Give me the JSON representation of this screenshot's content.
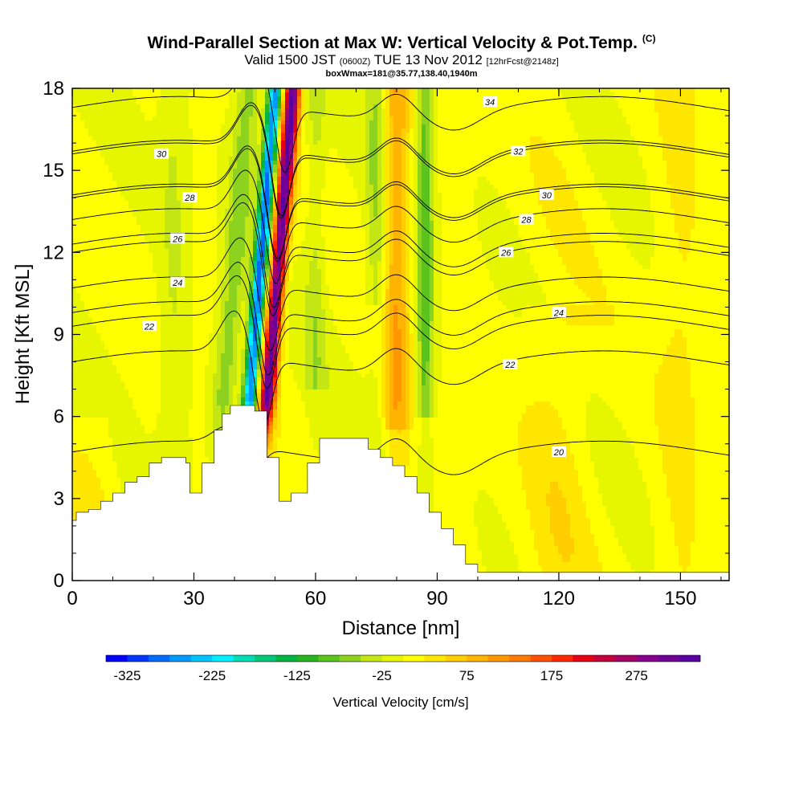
{
  "title": {
    "main": "Wind-Parallel Section at Max W: Vertical Velocity & Pot.Temp.",
    "copyright": "(C)",
    "valid_prefix": "Valid 1500 JST",
    "valid_utc": "(0600Z)",
    "valid_date": "TUE 13 Nov 2012",
    "forecast": "[12hrFcst@2148z]",
    "box_info": "boxWmax=181@35.77,138.40,1940m"
  },
  "chart_data": {
    "type": "heatmap",
    "xlabel": "Distance [nm]",
    "ylabel": "Height [Kft MSL]",
    "xlim": [
      0,
      162
    ],
    "ylim": [
      0,
      18
    ],
    "x_ticks": [
      "0",
      "30",
      "60",
      "90",
      "120",
      "150"
    ],
    "y_ticks": [
      "0",
      "3",
      "6",
      "9",
      "12",
      "15",
      "18"
    ],
    "x_tick_values": [
      0,
      30,
      60,
      90,
      120,
      150
    ],
    "y_tick_values": [
      0,
      3,
      6,
      9,
      12,
      15,
      18
    ],
    "colorbar": {
      "label": "Vertical Velocity [cm/s]",
      "tick_labels": [
        "-325",
        "-225",
        "-125",
        "-25",
        "75",
        "175",
        "275"
      ],
      "tick_values": [
        -325,
        -225,
        -125,
        -25,
        75,
        175,
        275
      ],
      "range": [
        -350,
        350
      ],
      "step": 25,
      "colors": [
        "#0000ff",
        "#0036ff",
        "#006aff",
        "#009aff",
        "#00c4ff",
        "#00eeff",
        "#00dcb4",
        "#00c878",
        "#00b441",
        "#28b41e",
        "#5ac31e",
        "#8cd21e",
        "#c3e614",
        "#e6f500",
        "#ffff00",
        "#ffe600",
        "#ffcd00",
        "#ffb400",
        "#ff9600",
        "#ff7800",
        "#ff5000",
        "#ff2800",
        "#e60014",
        "#c3003c",
        "#a50064",
        "#87008c",
        "#6e0096",
        "#5a00a0"
      ]
    },
    "terrain_profile": [
      [
        0,
        2.2
      ],
      [
        1,
        2.2
      ],
      [
        1,
        2.5
      ],
      [
        4,
        2.5
      ],
      [
        4,
        2.6
      ],
      [
        7,
        2.6
      ],
      [
        7,
        2.9
      ],
      [
        10,
        2.9
      ],
      [
        10,
        3.2
      ],
      [
        13,
        3.2
      ],
      [
        13,
        3.6
      ],
      [
        16,
        3.6
      ],
      [
        16,
        3.8
      ],
      [
        19,
        3.8
      ],
      [
        19,
        4.3
      ],
      [
        22,
        4.3
      ],
      [
        22,
        4.5
      ],
      [
        28,
        4.5
      ],
      [
        28,
        4.3
      ],
      [
        29,
        4.3
      ],
      [
        29,
        3.2
      ],
      [
        32,
        3.2
      ],
      [
        32,
        4.3
      ],
      [
        35,
        4.3
      ],
      [
        35,
        5.5
      ],
      [
        37,
        5.5
      ],
      [
        37,
        6.1
      ],
      [
        39,
        6.1
      ],
      [
        39,
        6.4
      ],
      [
        45,
        6.4
      ],
      [
        45,
        6.2
      ],
      [
        48,
        6.2
      ],
      [
        48,
        4.5
      ],
      [
        51,
        4.5
      ],
      [
        51,
        2.9
      ],
      [
        54,
        2.9
      ],
      [
        54,
        3.2
      ],
      [
        58,
        3.2
      ],
      [
        58,
        4.3
      ],
      [
        61,
        4.3
      ],
      [
        61,
        5.2
      ],
      [
        73,
        5.2
      ],
      [
        73,
        4.8
      ],
      [
        76,
        4.8
      ],
      [
        76,
        4.5
      ],
      [
        79,
        4.5
      ],
      [
        79,
        4.2
      ],
      [
        82,
        4.2
      ],
      [
        82,
        3.8
      ],
      [
        85,
        3.8
      ],
      [
        85,
        3.2
      ],
      [
        88,
        3.2
      ],
      [
        88,
        2.5
      ],
      [
        91,
        2.5
      ],
      [
        91,
        1.9
      ],
      [
        94,
        1.9
      ],
      [
        94,
        1.3
      ],
      [
        97,
        1.3
      ],
      [
        97,
        0.6
      ],
      [
        100,
        0.6
      ],
      [
        100,
        0.3
      ],
      [
        162,
        0.3
      ]
    ],
    "theta_contours": [
      {
        "label": "20",
        "base": 4.7,
        "lx": 120,
        "ly": 4.7
      },
      {
        "label": "22",
        "base": 8.0,
        "lx": 108,
        "ly": 7.9
      },
      {
        "label": "22",
        "base": 9.3,
        "lx": 19,
        "ly": 9.3
      },
      {
        "label": "24",
        "base": 10.7,
        "lx": 26,
        "ly": 10.9
      },
      {
        "label": "24",
        "base": 9.8,
        "lx": 120,
        "ly": 9.8
      },
      {
        "label": "26",
        "base": 12.3,
        "lx": 26,
        "ly": 12.5
      },
      {
        "label": "26",
        "base": 12.0,
        "lx": 107,
        "ly": 12.0
      },
      {
        "label": "28",
        "base": 14.0,
        "lx": 29,
        "ly": 14.0
      },
      {
        "label": "28",
        "base": 13.2,
        "lx": 112,
        "ly": 13.2
      },
      {
        "label": "30",
        "base": 15.6,
        "lx": 22,
        "ly": 15.6
      },
      {
        "label": "30",
        "base": 14.1,
        "lx": 117,
        "ly": 14.1
      },
      {
        "label": "32",
        "base": 15.7,
        "lx": 110,
        "ly": 15.7
      },
      {
        "label": "34",
        "base": 17.3,
        "lx": 103,
        "ly": 17.5
      }
    ]
  }
}
